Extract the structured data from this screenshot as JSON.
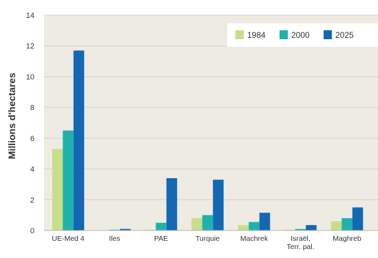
{
  "chart_data": {
    "type": "bar",
    "title": "",
    "xlabel": "",
    "ylabel": "Millions d'hectares",
    "ylim": [
      0,
      14
    ],
    "yticks": [
      0,
      2,
      4,
      6,
      8,
      10,
      12,
      14
    ],
    "grid": true,
    "legend_position": "top-right",
    "categories": [
      "UE-Med 4",
      "Iles",
      "PAE",
      "Turquie",
      "Machrek",
      "Israël, Terr. pal.",
      "Maghreb"
    ],
    "category_lines": [
      [
        "UE-Med 4"
      ],
      [
        "Iles"
      ],
      [
        "PAE"
      ],
      [
        "Turquie"
      ],
      [
        "Machrek"
      ],
      [
        "Israël,",
        "Terr. pal."
      ],
      [
        "Maghreb"
      ]
    ],
    "series": [
      {
        "name": "1984",
        "color": "#c8dd8a",
        "values": [
          5.3,
          0.02,
          0.05,
          0.8,
          0.35,
          0.05,
          0.6
        ]
      },
      {
        "name": "2000",
        "color": "#1fb2ac",
        "values": [
          6.5,
          0.05,
          0.5,
          1.0,
          0.55,
          0.1,
          0.8
        ]
      },
      {
        "name": "2025",
        "color": "#1368b3",
        "values": [
          11.7,
          0.1,
          3.4,
          3.3,
          1.15,
          0.35,
          1.5
        ]
      }
    ],
    "colors": {
      "plot_background": "#eeebe2",
      "grid": "#d6d2c6",
      "axis": "#b8b4aa",
      "legend_background": "#ffffff",
      "text": "#333333"
    }
  }
}
